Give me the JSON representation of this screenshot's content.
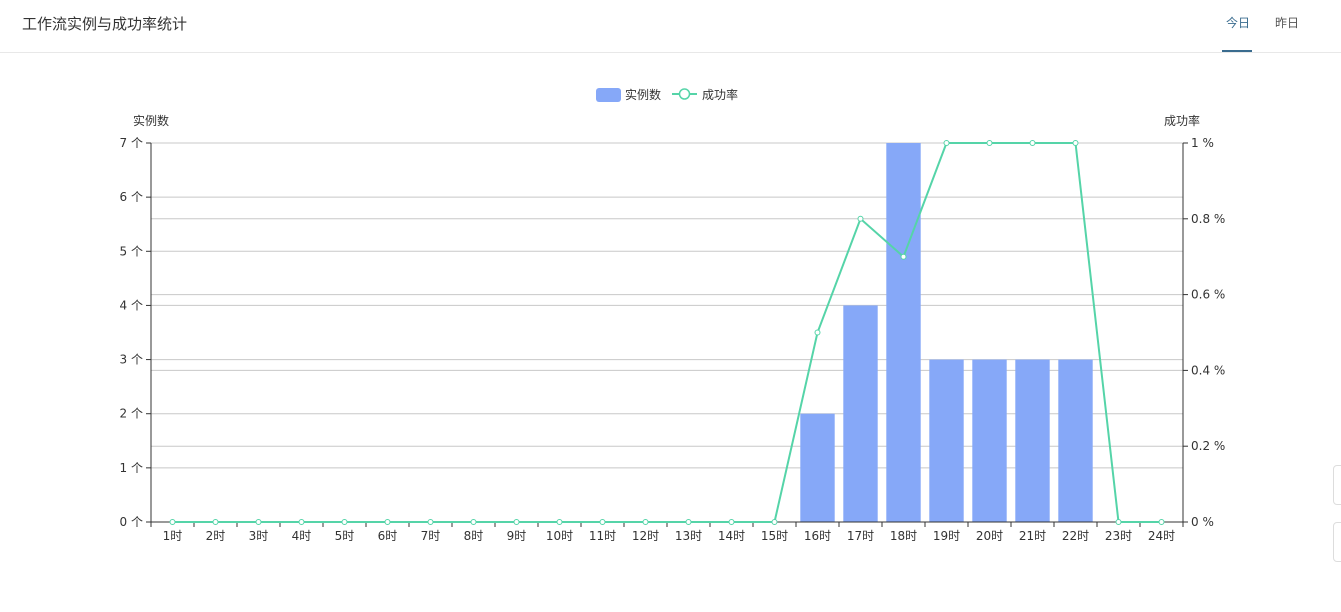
{
  "header": {
    "title": "工作流实例与成功率统计",
    "tabs": [
      {
        "label": "今日",
        "active": true
      },
      {
        "label": "昨日",
        "active": false
      }
    ]
  },
  "colors": {
    "bar": "#86a8f8",
    "line": "#55d4a8",
    "accent": "#3a6c8f"
  },
  "chart_data": {
    "type": "bar",
    "legend": [
      "实例数",
      "成功率"
    ],
    "legend_position": "top-center",
    "categories": [
      "1时",
      "2时",
      "3时",
      "4时",
      "5时",
      "6时",
      "7时",
      "8时",
      "9时",
      "10时",
      "11时",
      "12时",
      "13时",
      "14时",
      "15时",
      "16时",
      "17时",
      "18时",
      "19时",
      "20时",
      "21时",
      "22时",
      "23时",
      "24时"
    ],
    "series": [
      {
        "name": "实例数",
        "type": "bar",
        "axis": "left",
        "values": [
          0,
          0,
          0,
          0,
          0,
          0,
          0,
          0,
          0,
          0,
          0,
          0,
          0,
          0,
          0,
          2,
          4,
          7,
          3,
          3,
          3,
          3,
          0,
          0
        ]
      },
      {
        "name": "成功率",
        "type": "line",
        "axis": "right",
        "values": [
          0,
          0,
          0,
          0,
          0,
          0,
          0,
          0,
          0,
          0,
          0,
          0,
          0,
          0,
          0,
          0.5,
          0.8,
          0.7,
          1,
          1,
          1,
          1,
          0,
          0
        ]
      }
    ],
    "y_left": {
      "label": "实例数",
      "min": 0,
      "max": 7,
      "ticks": [
        "0 个",
        "1 个",
        "2 个",
        "3 个",
        "4 个",
        "5 个",
        "6 个",
        "7 个"
      ]
    },
    "y_right": {
      "label": "成功率",
      "min": 0,
      "max": 1,
      "ticks": [
        "0 %",
        "0.2 %",
        "0.4 %",
        "0.6 %",
        "0.8 %",
        "1 %"
      ]
    },
    "grid": true
  }
}
